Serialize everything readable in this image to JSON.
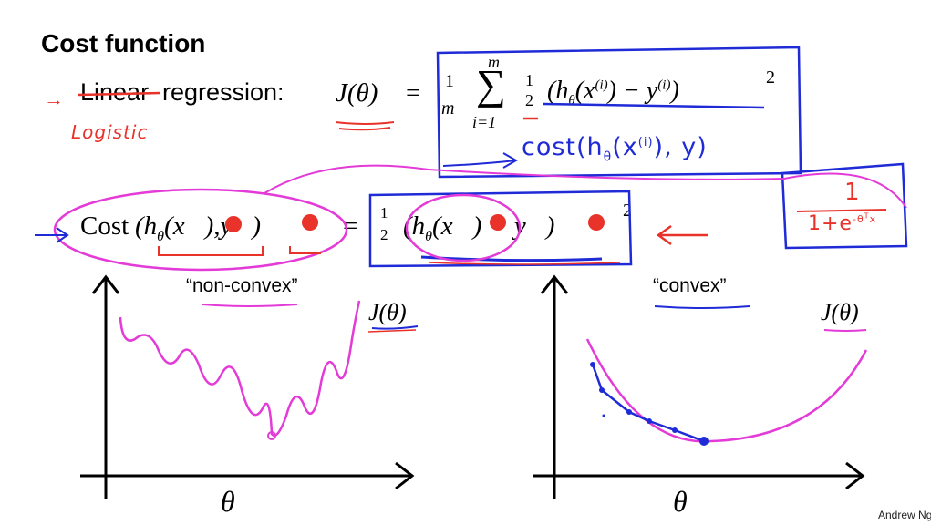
{
  "slide": {
    "title": "Cost function",
    "line1": {
      "struck_word": "Linear",
      "rest": "regression:",
      "handwritten_replacement": "Logistic",
      "lhs": "J(θ)",
      "eq": "=",
      "frac_num": "1",
      "frac_den": "m",
      "sum_top": "m",
      "sum_bottom": "i=1",
      "half_num": "1",
      "half_den": "2",
      "struck_term": "(h",
      "struck_sub": "θ",
      "struck_mid": "(x",
      "struck_sup": "(i)",
      "struck_minus": ") − y",
      "struck_sup2": "(i)",
      "struck_end": ")",
      "power": "2",
      "handwritten_cost": "cost(h",
      "handwritten_cost_sub": "θ",
      "handwritten_cost_mid": "(x",
      "handwritten_cost_sup": "(i)",
      "handwritten_cost_end": "), y)"
    },
    "line2": {
      "cost_label": "Cost",
      "h_label": "h",
      "theta_sub": "θ",
      "x_label": "x",
      "y_label": "y",
      "eq": "=",
      "half_num": "1",
      "half_den": "2",
      "minus": "−",
      "power": "2",
      "sigmoid_num": "1",
      "sigmoid_den": "1+e",
      "sigmoid_exp": "-θ",
      "sigmoid_exp_sup": "T",
      "sigmoid_exp_end": "x"
    },
    "left_plot": {
      "label": "“non-convex”",
      "ylabel": "J(θ)",
      "xlabel": "θ"
    },
    "right_plot": {
      "label": "“convex”",
      "ylabel": "J(θ)",
      "xlabel": "θ"
    },
    "footer": "Andrew Ng",
    "colors": {
      "pen_red": "#e8322a",
      "pen_blue": "#1f2bd6",
      "pen_magenta": "#e33ad8",
      "ink": "#000000"
    }
  }
}
